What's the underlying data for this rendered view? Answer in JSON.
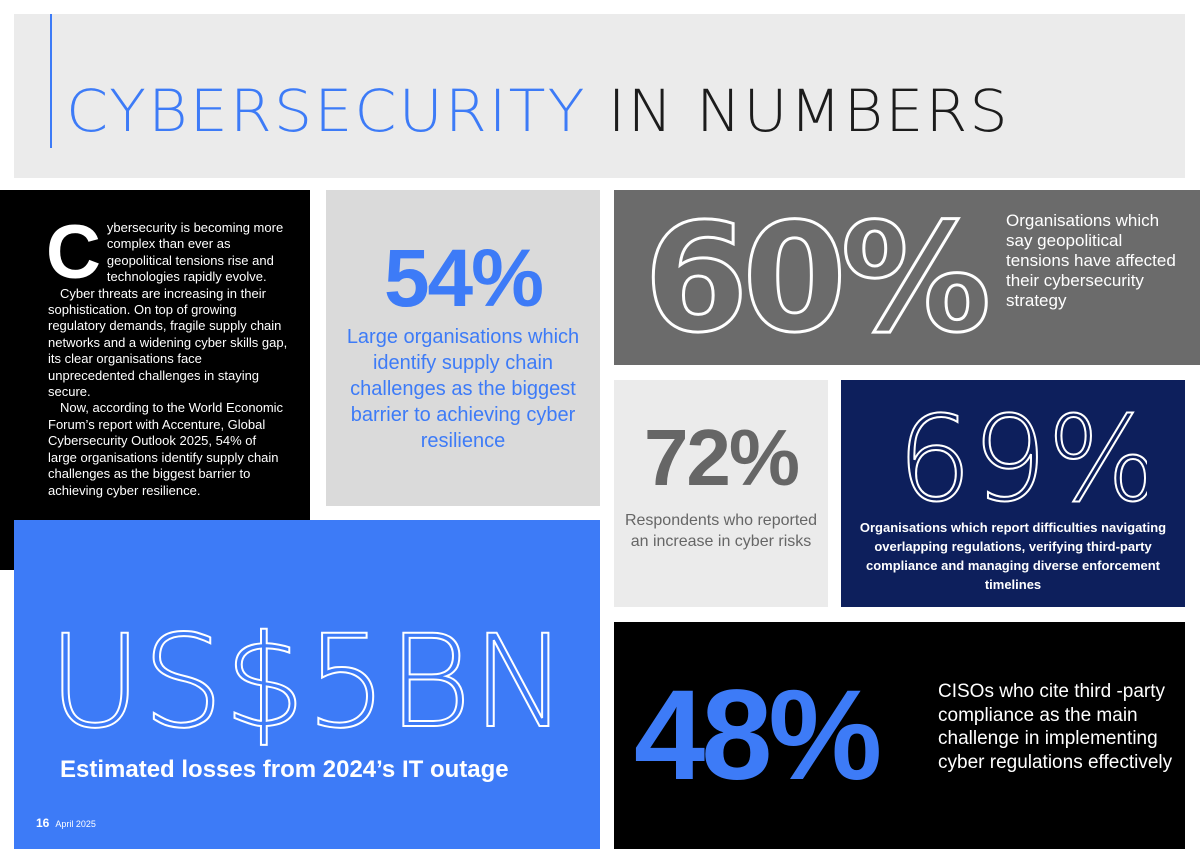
{
  "header": {
    "title_accent": "CYBERSECURITY",
    "title_rest": " IN NUMBERS"
  },
  "intro": {
    "dropcap": "C",
    "paragraph1": "ybersecurity is becoming more complex than ever as geopolitical tensions rise and technologies rapidly evolve.",
    "paragraph2": "Cyber threats are increasing in their sophistication. On top of growing regulatory demands, fragile supply chain networks and a widening cyber skills gap, its clear organisations face unprecedented challenges in staying secure.",
    "paragraph3": "Now, according to the World Economic Forum’s report with Accenture, Global Cybersecurity Outlook 2025, 54% of large organisations identify supply chain challenges as the biggest barrier to achieving cyber resilience."
  },
  "stats": {
    "s54": {
      "value": "54%",
      "caption": "Large organisations which identify supply chain challenges as the biggest barrier to achieving cyber resilience"
    },
    "s60": {
      "value": "60%",
      "caption": "Organisations which say geopolitical tensions have affected their cybersecurity strategy"
    },
    "s72": {
      "value": "72%",
      "caption": "Respondents who reported an increase in cyber risks"
    },
    "s69": {
      "value": "69%",
      "caption": "Organisations which report difficulties navigating overlapping regulations, verifying third-party compliance and managing diverse enforcement timelines"
    },
    "loss": {
      "value": "US$5BN",
      "caption": "Estimated losses from 2024’s IT outage"
    },
    "s48": {
      "value": "48%",
      "caption": "CISOs who cite third -party compliance as the main challenge in implementing cyber regulations effectively"
    }
  },
  "footer": {
    "page_number": "16",
    "date": "April 2025"
  },
  "colors": {
    "accent_blue": "#3d7bf7",
    "navy": "#0d1f5c",
    "dark_grey": "#6b6b6b",
    "light_grey": "#ebebeb"
  }
}
